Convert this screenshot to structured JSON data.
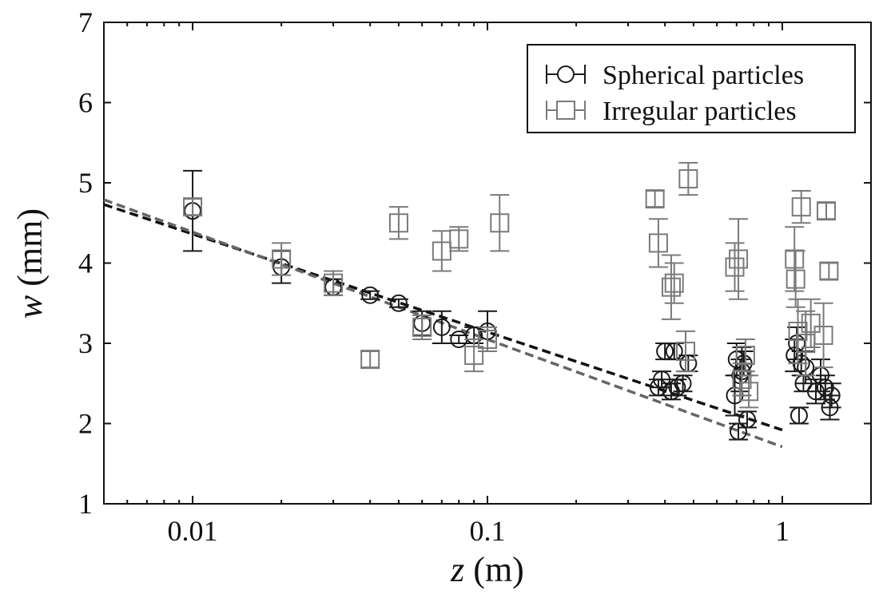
{
  "chart_data": {
    "type": "scatter",
    "xscale": "log",
    "xlim": [
      0.005,
      2.0
    ],
    "ylim": [
      1,
      7
    ],
    "xlabel_var": "z",
    "xlabel_unit": " (m)",
    "ylabel_var": "w",
    "ylabel_unit": " (mm)",
    "xticks": [
      {
        "value": 0.01,
        "label": "0.01"
      },
      {
        "value": 0.1,
        "label": "0.1"
      },
      {
        "value": 1,
        "label": "1"
      }
    ],
    "yticks": [
      {
        "value": 1,
        "label": "1"
      },
      {
        "value": 2,
        "label": "2"
      },
      {
        "value": 3,
        "label": "3"
      },
      {
        "value": 4,
        "label": "4"
      },
      {
        "value": 5,
        "label": "5"
      },
      {
        "value": 6,
        "label": "6"
      },
      {
        "value": 7,
        "label": "7"
      }
    ],
    "legend_position": "top-right",
    "series": [
      {
        "name": "Spherical particles",
        "marker": "circle",
        "color": "#1a1a1a",
        "points": [
          {
            "x": 0.01,
            "y": 4.65,
            "err": 0.5
          },
          {
            "x": 0.02,
            "y": 3.95,
            "err": 0.2
          },
          {
            "x": 0.03,
            "y": 3.7,
            "err": 0.1
          },
          {
            "x": 0.04,
            "y": 3.6,
            "err": 0.05
          },
          {
            "x": 0.05,
            "y": 3.5,
            "err": 0.05
          },
          {
            "x": 0.06,
            "y": 3.25,
            "err": 0.15
          },
          {
            "x": 0.07,
            "y": 3.2,
            "err": 0.2
          },
          {
            "x": 0.08,
            "y": 3.05,
            "err": 0.05
          },
          {
            "x": 0.09,
            "y": 3.1,
            "err": 0.1
          },
          {
            "x": 0.1,
            "y": 3.15,
            "err": 0.25
          },
          {
            "x": 0.38,
            "y": 2.45,
            "err": 0.1
          },
          {
            "x": 0.39,
            "y": 2.55,
            "err": 0.1
          },
          {
            "x": 0.4,
            "y": 2.9,
            "err": 0.1
          },
          {
            "x": 0.42,
            "y": 2.4,
            "err": 0.1
          },
          {
            "x": 0.43,
            "y": 2.9,
            "err": 0.1
          },
          {
            "x": 0.44,
            "y": 2.45,
            "err": 0.1
          },
          {
            "x": 0.46,
            "y": 2.5,
            "err": 0.1
          },
          {
            "x": 0.48,
            "y": 2.75,
            "err": 0.1
          },
          {
            "x": 0.69,
            "y": 2.35,
            "err": 0.25
          },
          {
            "x": 0.7,
            "y": 2.8,
            "err": 0.2
          },
          {
            "x": 0.71,
            "y": 1.9,
            "err": 0.1
          },
          {
            "x": 0.72,
            "y": 2.6,
            "err": 0.2
          },
          {
            "x": 0.73,
            "y": 2.65,
            "err": 0.3
          },
          {
            "x": 0.74,
            "y": 2.75,
            "err": 0.15
          },
          {
            "x": 0.76,
            "y": 2.05,
            "err": 0.1
          },
          {
            "x": 1.1,
            "y": 2.85,
            "err": 0.2
          },
          {
            "x": 1.12,
            "y": 3.0,
            "err": 0.2
          },
          {
            "x": 1.14,
            "y": 2.1,
            "err": 0.1
          },
          {
            "x": 1.16,
            "y": 2.75,
            "err": 0.15
          },
          {
            "x": 1.18,
            "y": 2.5,
            "err": 0.1
          },
          {
            "x": 1.2,
            "y": 2.7,
            "err": 0.2
          },
          {
            "x": 1.3,
            "y": 2.4,
            "err": 0.15
          },
          {
            "x": 1.35,
            "y": 2.6,
            "err": 0.2
          },
          {
            "x": 1.4,
            "y": 2.45,
            "err": 0.15
          },
          {
            "x": 1.45,
            "y": 2.2,
            "err": 0.15
          },
          {
            "x": 1.47,
            "y": 2.35,
            "err": 0.15
          }
        ]
      },
      {
        "name": "Irregular particles",
        "marker": "square",
        "color": "#7a7a7a",
        "points": [
          {
            "x": 0.01,
            "y": 4.7,
            "err": 0.1
          },
          {
            "x": 0.02,
            "y": 4.05,
            "err": 0.2
          },
          {
            "x": 0.03,
            "y": 3.75,
            "err": 0.15
          },
          {
            "x": 0.04,
            "y": 2.8,
            "err": 0.1
          },
          {
            "x": 0.05,
            "y": 4.5,
            "err": 0.2
          },
          {
            "x": 0.06,
            "y": 3.2,
            "err": 0.15
          },
          {
            "x": 0.07,
            "y": 4.15,
            "err": 0.25
          },
          {
            "x": 0.08,
            "y": 4.3,
            "err": 0.15
          },
          {
            "x": 0.09,
            "y": 2.85,
            "err": 0.2
          },
          {
            "x": 0.1,
            "y": 3.05,
            "err": 0.15
          },
          {
            "x": 0.11,
            "y": 4.5,
            "err": 0.35
          },
          {
            "x": 0.37,
            "y": 4.8,
            "err": 0.1
          },
          {
            "x": 0.38,
            "y": 4.25,
            "err": 0.3
          },
          {
            "x": 0.42,
            "y": 3.7,
            "err": 0.4
          },
          {
            "x": 0.43,
            "y": 3.75,
            "err": 0.25
          },
          {
            "x": 0.47,
            "y": 2.9,
            "err": 0.25
          },
          {
            "x": 0.48,
            "y": 5.05,
            "err": 0.2
          },
          {
            "x": 0.69,
            "y": 3.95,
            "err": 0.3
          },
          {
            "x": 0.71,
            "y": 4.05,
            "err": 0.5
          },
          {
            "x": 0.73,
            "y": 2.55,
            "err": 0.2
          },
          {
            "x": 0.75,
            "y": 2.85,
            "err": 0.2
          },
          {
            "x": 0.77,
            "y": 2.4,
            "err": 0.2
          },
          {
            "x": 1.1,
            "y": 4.05,
            "err": 0.4
          },
          {
            "x": 1.11,
            "y": 3.8,
            "err": 0.35
          },
          {
            "x": 1.13,
            "y": 3.15,
            "err": 0.4
          },
          {
            "x": 1.16,
            "y": 4.7,
            "err": 0.2
          },
          {
            "x": 1.2,
            "y": 3.0,
            "err": 0.4
          },
          {
            "x": 1.25,
            "y": 3.25,
            "err": 0.3
          },
          {
            "x": 1.38,
            "y": 3.1,
            "err": 0.4
          },
          {
            "x": 1.41,
            "y": 4.65,
            "err": 0.1
          },
          {
            "x": 1.44,
            "y": 3.9,
            "err": 0.1
          }
        ]
      }
    ],
    "fit_lines": [
      {
        "color": "#111111",
        "x": [
          0.005,
          1.0
        ],
        "y": [
          4.73,
          1.92
        ]
      },
      {
        "color": "#666666",
        "x": [
          0.005,
          1.0
        ],
        "y": [
          4.79,
          1.71
        ]
      }
    ]
  }
}
